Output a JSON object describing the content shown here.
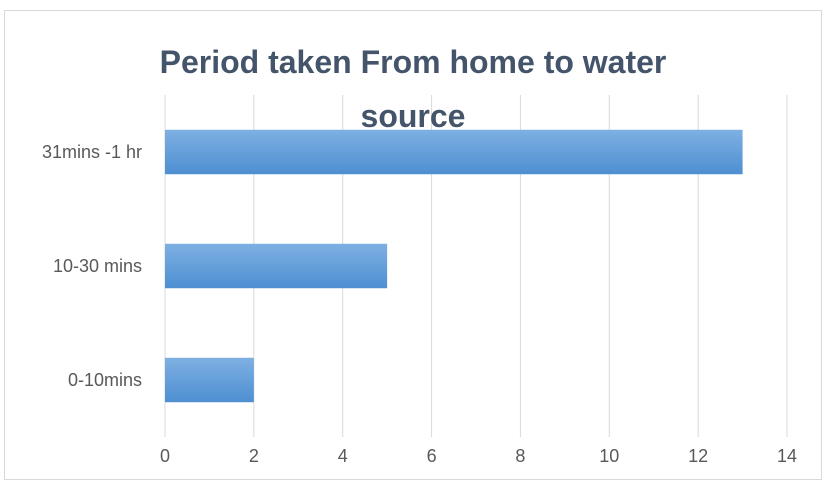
{
  "chart_data": {
    "type": "bar",
    "orientation": "horizontal",
    "title_lines": [
      "Period taken From home to water",
      "source"
    ],
    "categories": [
      "0-10mins",
      "10-30 mins",
      "31mins -1 hr"
    ],
    "values": [
      2,
      5,
      13
    ],
    "xlim": [
      0,
      14
    ],
    "xticks": [
      "0",
      "2",
      "4",
      "6",
      "8",
      "10",
      "12",
      "14"
    ],
    "grid": "vertical",
    "legend": "none",
    "colors": {
      "bar": "#5b9bd5",
      "grid": "#d9d9d9",
      "title": "#44546a",
      "labels": "#595959"
    }
  }
}
